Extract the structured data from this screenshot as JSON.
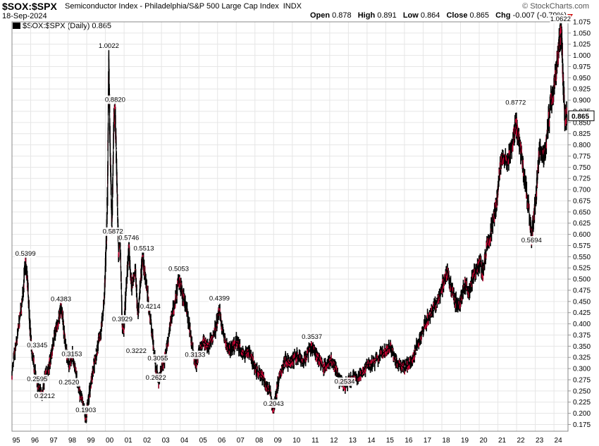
{
  "header": {
    "symbol": "$SOX:$SPX",
    "description": "Semiconductor Index - Philadelphia/S&P 500 Large Cap Index",
    "exchange": "INDX",
    "date": "18-Sep-2024",
    "brand": "© StockCharts.com",
    "open_label": "Open",
    "open": "0.878",
    "high_label": "High",
    "high": "0.891",
    "low_label": "Low",
    "low": "0.864",
    "close_label": "Close",
    "close": "0.865",
    "chg_label": "Chg",
    "chg": "-0.007 (-0.79%)"
  },
  "legend": {
    "text": "$SOX:$SPX (Daily) 0.865"
  },
  "colors": {
    "line": "#000000",
    "down": "#cc0033",
    "grid": "#e6e6e6",
    "arrow": "#cc0000"
  },
  "chart_data": {
    "type": "line",
    "title": "$SOX:$SPX (Daily)",
    "xlabel": "",
    "ylabel": "",
    "ylim": [
      0.16,
      1.075
    ],
    "xlim": [
      1995.0,
      2024.75
    ],
    "x_ticks": [
      "95",
      "96",
      "97",
      "98",
      "99",
      "00",
      "01",
      "02",
      "03",
      "04",
      "05",
      "06",
      "07",
      "08",
      "09",
      "10",
      "11",
      "12",
      "13",
      "14",
      "15",
      "16",
      "17",
      "18",
      "19",
      "20",
      "21",
      "22",
      "23",
      "24"
    ],
    "y_ticks": [
      "0.175",
      "0.200",
      "0.225",
      "0.250",
      "0.275",
      "0.300",
      "0.325",
      "0.350",
      "0.375",
      "0.400",
      "0.425",
      "0.450",
      "0.475",
      "0.500",
      "0.525",
      "0.550",
      "0.575",
      "0.600",
      "0.625",
      "0.650",
      "0.675",
      "0.700",
      "0.725",
      "0.750",
      "0.775",
      "0.800",
      "0.825",
      "0.850",
      "0.875",
      "0.900",
      "0.925",
      "0.950",
      "0.975",
      "1.000",
      "1.025",
      "1.050",
      "1.075"
    ],
    "last_value": "0.865",
    "series": [
      {
        "name": "$SOX:$SPX",
        "points": [
          [
            1995.0,
            0.29
          ],
          [
            1995.25,
            0.36
          ],
          [
            1995.55,
            0.45
          ],
          [
            1995.72,
            0.54
          ],
          [
            1995.85,
            0.48
          ],
          [
            1995.95,
            0.4
          ],
          [
            1996.05,
            0.34
          ],
          [
            1996.2,
            0.3
          ],
          [
            1996.4,
            0.26
          ],
          [
            1996.6,
            0.24
          ],
          [
            1996.75,
            0.28
          ],
          [
            1996.95,
            0.3
          ],
          [
            1997.1,
            0.33
          ],
          [
            1997.3,
            0.38
          ],
          [
            1997.5,
            0.41
          ],
          [
            1997.62,
            0.44
          ],
          [
            1997.75,
            0.4
          ],
          [
            1997.9,
            0.34
          ],
          [
            1998.05,
            0.31
          ],
          [
            1998.25,
            0.33
          ],
          [
            1998.45,
            0.28
          ],
          [
            1998.65,
            0.24
          ],
          [
            1998.8,
            0.22
          ],
          [
            1998.95,
            0.19
          ],
          [
            1999.05,
            0.22
          ],
          [
            1999.2,
            0.26
          ],
          [
            1999.35,
            0.3
          ],
          [
            1999.55,
            0.34
          ],
          [
            1999.75,
            0.38
          ],
          [
            1999.95,
            0.46
          ],
          [
            2000.05,
            0.59
          ],
          [
            2000.12,
            0.7
          ],
          [
            2000.18,
            1.0
          ],
          [
            2000.25,
            0.8
          ],
          [
            2000.35,
            0.62
          ],
          [
            2000.45,
            0.85
          ],
          [
            2000.52,
            0.88
          ],
          [
            2000.6,
            0.75
          ],
          [
            2000.7,
            0.56
          ],
          [
            2000.78,
            0.6
          ],
          [
            2000.9,
            0.4
          ],
          [
            2001.0,
            0.39
          ],
          [
            2001.1,
            0.47
          ],
          [
            2001.25,
            0.57
          ],
          [
            2001.4,
            0.48
          ],
          [
            2001.6,
            0.52
          ],
          [
            2001.75,
            0.42
          ],
          [
            2001.9,
            0.5
          ],
          [
            2002.0,
            0.55
          ],
          [
            2002.12,
            0.51
          ],
          [
            2002.3,
            0.45
          ],
          [
            2002.5,
            0.38
          ],
          [
            2002.7,
            0.3
          ],
          [
            2002.85,
            0.27
          ],
          [
            2003.0,
            0.3
          ],
          [
            2003.15,
            0.32
          ],
          [
            2003.35,
            0.36
          ],
          [
            2003.55,
            0.42
          ],
          [
            2003.75,
            0.45
          ],
          [
            2003.92,
            0.5
          ],
          [
            2004.05,
            0.48
          ],
          [
            2004.2,
            0.45
          ],
          [
            2004.4,
            0.42
          ],
          [
            2004.55,
            0.38
          ],
          [
            2004.7,
            0.33
          ],
          [
            2004.85,
            0.31
          ],
          [
            2005.0,
            0.34
          ],
          [
            2005.25,
            0.36
          ],
          [
            2005.5,
            0.35
          ],
          [
            2005.75,
            0.37
          ],
          [
            2005.95,
            0.4
          ],
          [
            2006.1,
            0.43
          ],
          [
            2006.25,
            0.39
          ],
          [
            2006.45,
            0.36
          ],
          [
            2006.65,
            0.34
          ],
          [
            2006.85,
            0.35
          ],
          [
            2007.05,
            0.36
          ],
          [
            2007.25,
            0.34
          ],
          [
            2007.45,
            0.33
          ],
          [
            2007.65,
            0.34
          ],
          [
            2007.85,
            0.32
          ],
          [
            2008.05,
            0.3
          ],
          [
            2008.25,
            0.29
          ],
          [
            2008.45,
            0.28
          ],
          [
            2008.6,
            0.26
          ],
          [
            2008.8,
            0.25
          ],
          [
            2008.95,
            0.21
          ],
          [
            2009.05,
            0.22
          ],
          [
            2009.25,
            0.27
          ],
          [
            2009.45,
            0.3
          ],
          [
            2009.65,
            0.32
          ],
          [
            2009.85,
            0.31
          ],
          [
            2010.05,
            0.32
          ],
          [
            2010.3,
            0.33
          ],
          [
            2010.55,
            0.31
          ],
          [
            2010.8,
            0.33
          ],
          [
            2011.05,
            0.35
          ],
          [
            2011.25,
            0.33
          ],
          [
            2011.45,
            0.32
          ],
          [
            2011.65,
            0.3
          ],
          [
            2011.85,
            0.31
          ],
          [
            2012.1,
            0.32
          ],
          [
            2012.3,
            0.3
          ],
          [
            2012.55,
            0.27
          ],
          [
            2012.8,
            0.26
          ],
          [
            2013.0,
            0.27
          ],
          [
            2013.25,
            0.28
          ],
          [
            2013.5,
            0.28
          ],
          [
            2013.75,
            0.29
          ],
          [
            2014.0,
            0.31
          ],
          [
            2014.25,
            0.31
          ],
          [
            2014.5,
            0.32
          ],
          [
            2014.75,
            0.33
          ],
          [
            2015.0,
            0.34
          ],
          [
            2015.25,
            0.35
          ],
          [
            2015.5,
            0.32
          ],
          [
            2015.75,
            0.31
          ],
          [
            2016.0,
            0.3
          ],
          [
            2016.25,
            0.31
          ],
          [
            2016.5,
            0.33
          ],
          [
            2016.75,
            0.36
          ],
          [
            2017.0,
            0.39
          ],
          [
            2017.25,
            0.41
          ],
          [
            2017.5,
            0.43
          ],
          [
            2017.75,
            0.45
          ],
          [
            2018.0,
            0.48
          ],
          [
            2018.15,
            0.5
          ],
          [
            2018.3,
            0.52
          ],
          [
            2018.5,
            0.48
          ],
          [
            2018.7,
            0.45
          ],
          [
            2018.9,
            0.44
          ],
          [
            2019.05,
            0.46
          ],
          [
            2019.25,
            0.49
          ],
          [
            2019.45,
            0.47
          ],
          [
            2019.65,
            0.5
          ],
          [
            2019.85,
            0.52
          ],
          [
            2020.05,
            0.54
          ],
          [
            2020.2,
            0.51
          ],
          [
            2020.4,
            0.57
          ],
          [
            2020.6,
            0.6
          ],
          [
            2020.8,
            0.64
          ],
          [
            2020.95,
            0.68
          ],
          [
            2021.1,
            0.74
          ],
          [
            2021.25,
            0.78
          ],
          [
            2021.45,
            0.76
          ],
          [
            2021.65,
            0.78
          ],
          [
            2021.85,
            0.82
          ],
          [
            2021.95,
            0.85
          ],
          [
            2022.05,
            0.83
          ],
          [
            2022.25,
            0.78
          ],
          [
            2022.45,
            0.72
          ],
          [
            2022.65,
            0.66
          ],
          [
            2022.8,
            0.59
          ],
          [
            2022.95,
            0.65
          ],
          [
            2023.1,
            0.72
          ],
          [
            2023.25,
            0.8
          ],
          [
            2023.45,
            0.77
          ],
          [
            2023.65,
            0.83
          ],
          [
            2023.85,
            0.9
          ],
          [
            2024.0,
            0.92
          ],
          [
            2024.15,
            0.98
          ],
          [
            2024.3,
            1.04
          ],
          [
            2024.4,
            1.05
          ],
          [
            2024.48,
            0.96
          ],
          [
            2024.58,
            0.86
          ],
          [
            2024.7,
            0.865
          ]
        ]
      }
    ],
    "annotations": [
      {
        "label": "0.5399",
        "x": 1995.72,
        "y": 0.5399
      },
      {
        "label": "0.3345",
        "x": 1996.35,
        "y": 0.3345
      },
      {
        "label": "0.2595",
        "x": 1996.35,
        "y": 0.2595
      },
      {
        "label": "0.2212",
        "x": 1996.75,
        "y": 0.2212
      },
      {
        "label": "0.4383",
        "x": 1997.62,
        "y": 0.4383
      },
      {
        "label": "0.3153",
        "x": 1998.2,
        "y": 0.3153
      },
      {
        "label": "0.2520",
        "x": 1998.05,
        "y": 0.252
      },
      {
        "label": "0.1903",
        "x": 1998.95,
        "y": 0.1903
      },
      {
        "label": "1.0022",
        "x": 2000.18,
        "y": 1.0022
      },
      {
        "label": "0.8820",
        "x": 2000.52,
        "y": 0.882
      },
      {
        "label": "0.5872",
        "x": 2000.4,
        "y": 0.5872
      },
      {
        "label": "0.5746",
        "x": 2001.25,
        "y": 0.5746
      },
      {
        "label": "0.3929",
        "x": 2000.9,
        "y": 0.3929
      },
      {
        "label": "0.5513",
        "x": 2002.05,
        "y": 0.5513
      },
      {
        "label": "0.4214",
        "x": 2002.4,
        "y": 0.4214
      },
      {
        "label": "0.3222",
        "x": 2001.65,
        "y": 0.3222
      },
      {
        "label": "0.3055",
        "x": 2002.8,
        "y": 0.3055
      },
      {
        "label": "0.2622",
        "x": 2002.7,
        "y": 0.2622
      },
      {
        "label": "0.5053",
        "x": 2003.92,
        "y": 0.5053
      },
      {
        "label": "0.3133",
        "x": 2004.8,
        "y": 0.3133
      },
      {
        "label": "0.4399",
        "x": 2006.1,
        "y": 0.4399
      },
      {
        "label": "0.2043",
        "x": 2009.0,
        "y": 0.2043
      },
      {
        "label": "0.3537",
        "x": 2011.05,
        "y": 0.3537
      },
      {
        "label": "0.2534",
        "x": 2012.8,
        "y": 0.2534
      },
      {
        "label": "0.8772",
        "x": 2021.95,
        "y": 0.8772
      },
      {
        "label": "0.5694",
        "x": 2022.8,
        "y": 0.5694
      },
      {
        "label": "1.0622",
        "x": 2024.35,
        "y": 1.0622
      }
    ]
  }
}
